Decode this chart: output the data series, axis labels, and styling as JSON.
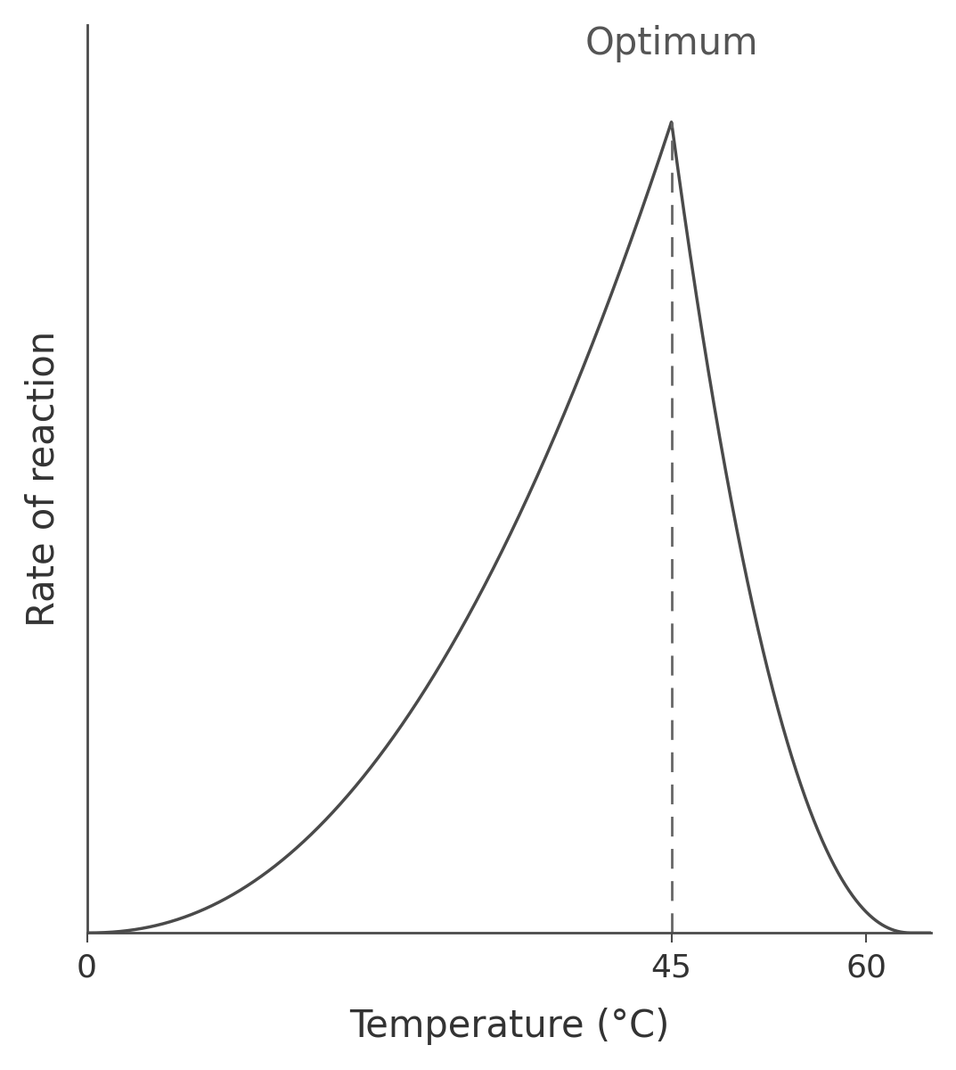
{
  "xlabel": "Temperature (°C)",
  "ylabel": "Rate of reaction",
  "xlim": [
    0,
    65
  ],
  "ylim": [
    0,
    1.12
  ],
  "optimum_temp": 45,
  "optimum_label": "Optimum",
  "x_ticks": [
    0,
    45,
    60
  ],
  "curve_color": "#4a4a4a",
  "dashed_color": "#666666",
  "background_color": "#ffffff",
  "xlabel_fontsize": 30,
  "ylabel_fontsize": 30,
  "tick_fontsize": 26,
  "optimum_fontsize": 30,
  "line_width": 2.5,
  "curve_end_x": 63.5
}
